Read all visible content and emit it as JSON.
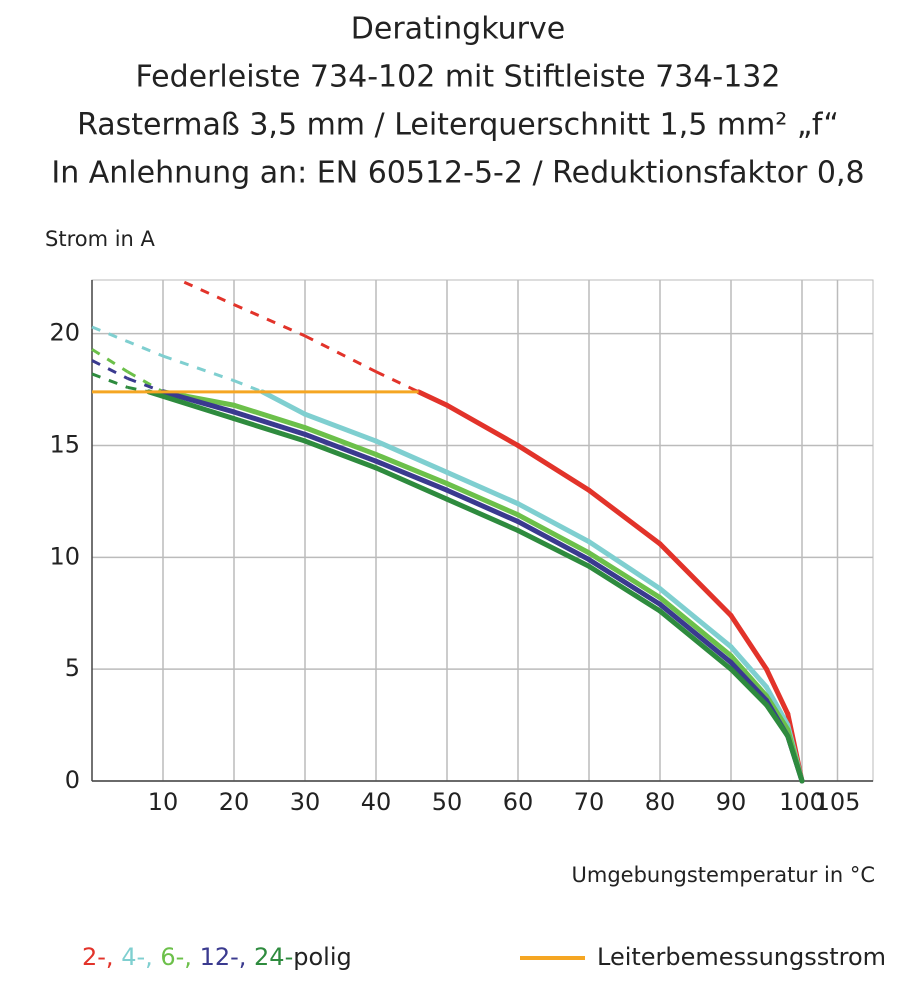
{
  "chart_data": {
    "type": "line",
    "title": [
      "Deratingkurve",
      "Federleiste 734-102 mit Stiftleiste 734-132",
      "Rastermaß 3,5 mm / Leiterquerschnitt 1,5 mm² „f“",
      "In Anlehnung an: EN 60512-5-2 / Reduktionsfaktor 0,8"
    ],
    "y_label": "Strom in A",
    "x_label": "Umgebungstemperatur in °C",
    "xlim": [
      0,
      110
    ],
    "ylim": [
      0,
      22.4
    ],
    "xticks": [
      10,
      20,
      30,
      40,
      50,
      60,
      70,
      80,
      90,
      100,
      105
    ],
    "yticks": [
      0,
      5,
      10,
      15,
      20
    ],
    "grid": true,
    "legend_suffix": "polig",
    "series": [
      {
        "name": "2-,",
        "color": "#e2332a",
        "x": [
          13,
          20,
          30,
          40,
          46,
          50,
          60,
          70,
          80,
          90,
          95,
          98,
          100
        ],
        "values": [
          22.3,
          21.3,
          19.9,
          18.3,
          17.4,
          16.8,
          15.0,
          13.0,
          10.6,
          7.4,
          5.0,
          3.0,
          0
        ]
      },
      {
        "name": "4-,",
        "color": "#7fcfd0",
        "x": [
          0,
          10,
          20,
          24,
          30,
          40,
          50,
          60,
          70,
          80,
          90,
          95,
          98,
          100
        ],
        "values": [
          20.3,
          19.0,
          17.9,
          17.4,
          16.4,
          15.2,
          13.8,
          12.4,
          10.7,
          8.6,
          6.0,
          4.2,
          2.5,
          0
        ]
      },
      {
        "name": "6-,",
        "color": "#6cc04a",
        "x": [
          0,
          5,
          10,
          20,
          30,
          40,
          50,
          60,
          70,
          80,
          90,
          95,
          98,
          100
        ],
        "values": [
          19.3,
          18.3,
          17.4,
          16.8,
          15.8,
          14.6,
          13.3,
          11.9,
          10.2,
          8.2,
          5.6,
          3.8,
          2.3,
          0
        ]
      },
      {
        "name": "12-,",
        "color": "#3a3a8f",
        "x": [
          0,
          5,
          10,
          20,
          30,
          40,
          50,
          60,
          70,
          80,
          90,
          95,
          98,
          100
        ],
        "values": [
          18.8,
          18.0,
          17.4,
          16.5,
          15.5,
          14.3,
          13.0,
          11.6,
          9.9,
          7.9,
          5.3,
          3.6,
          2.0,
          0
        ]
      },
      {
        "name": "24-",
        "color": "#2e8b3e",
        "x": [
          0,
          5,
          8,
          20,
          30,
          40,
          50,
          60,
          70,
          80,
          90,
          95,
          98,
          100
        ],
        "values": [
          18.2,
          17.6,
          17.4,
          16.2,
          15.2,
          14.0,
          12.6,
          11.2,
          9.6,
          7.6,
          5.0,
          3.4,
          2.0,
          0
        ]
      },
      {
        "name": "Leiterbemessungsstrom",
        "color": "#f5a623",
        "x": [
          0,
          46
        ],
        "values": [
          17.4,
          17.4
        ]
      }
    ]
  }
}
